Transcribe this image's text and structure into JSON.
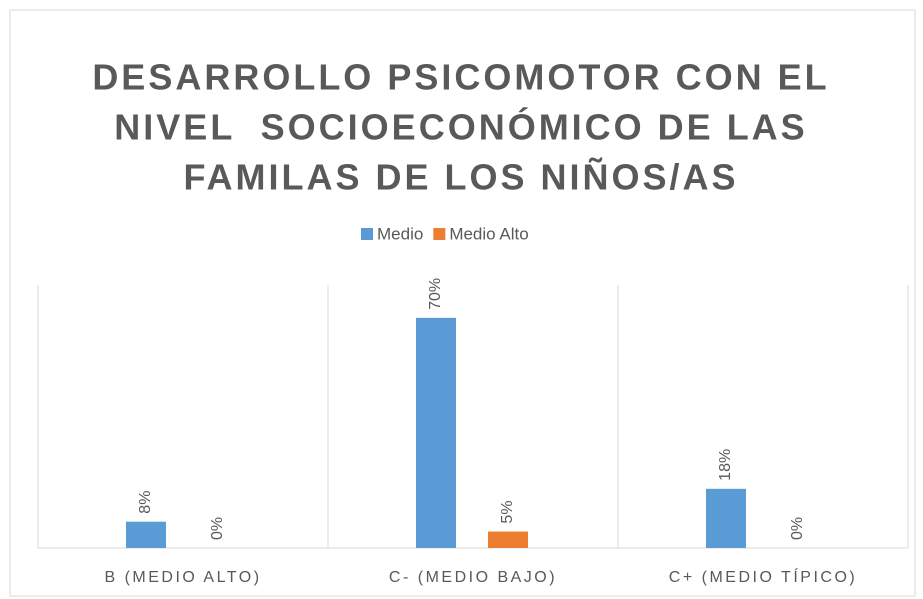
{
  "chart_data": {
    "type": "bar",
    "title": [
      "DESARROLLO PSICOMOTOR CON EL",
      "NIVEL  SOCIOECONÓMICO DE LAS",
      "FAMILAS DE LOS NIÑOS/AS"
    ],
    "categories": [
      "B (MEDIO ALTO)",
      "C- (MEDIO BAJO)",
      "C+ (MEDIO TÍPICO)"
    ],
    "series": [
      {
        "name": "Medio",
        "color": "#5b9bd5",
        "values": [
          8,
          70,
          18
        ],
        "value_labels": [
          "8%",
          "70%",
          "18%"
        ]
      },
      {
        "name": "Medio Alto",
        "color": "#ed7d31",
        "values": [
          0,
          5,
          0
        ],
        "value_labels": [
          "0%",
          "5%",
          "0%"
        ]
      }
    ],
    "ylim": [
      0,
      80
    ]
  }
}
